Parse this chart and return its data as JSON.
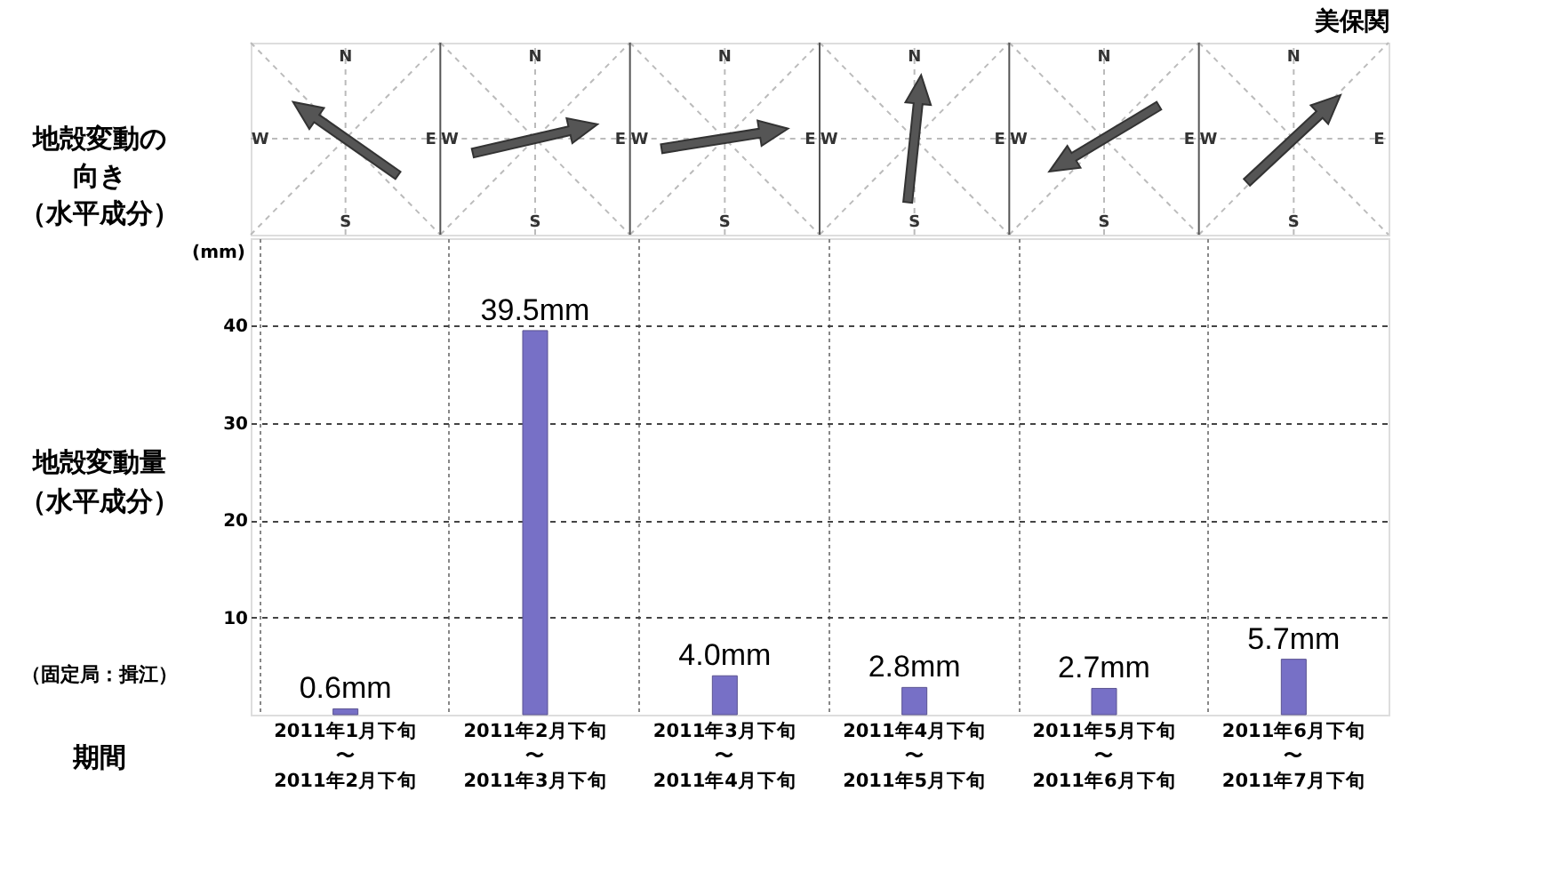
{
  "chart_data": [
    {
      "type": "other",
      "title": "美保関",
      "ylabel": "地殻変動の向き（水平成分）",
      "annotations": [
        "N",
        "E",
        "S",
        "W"
      ]
    },
    {
      "type": "bar",
      "ylabel": "地殻変動量（水平成分）",
      "xlabel": "期間",
      "categories": [
        "2011年1月下旬〜2011年2月下旬",
        "2011年2月下旬〜2011年3月下旬",
        "2011年3月下旬〜2011年4月下旬",
        "2011年4月下旬〜2011年5月下旬",
        "2011年5月下旬〜2011年6月下旬",
        "2011年6月下旬〜2011年7月下旬"
      ],
      "values": [
        0.6,
        39.5,
        4.0,
        2.8,
        2.7,
        5.7
      ],
      "value_labels": [
        "0.6mm",
        "39.5mm",
        "4.0mm",
        "2.8mm",
        "2.7mm",
        "5.7mm"
      ],
      "color": "#7770c6",
      "ylim": [
        0,
        49
      ],
      "yticks": [
        10,
        20,
        30,
        40
      ],
      "grid": true,
      "annotations": [
        "(mm)",
        "（固定局：揖江）"
      ]
    }
  ]
}
